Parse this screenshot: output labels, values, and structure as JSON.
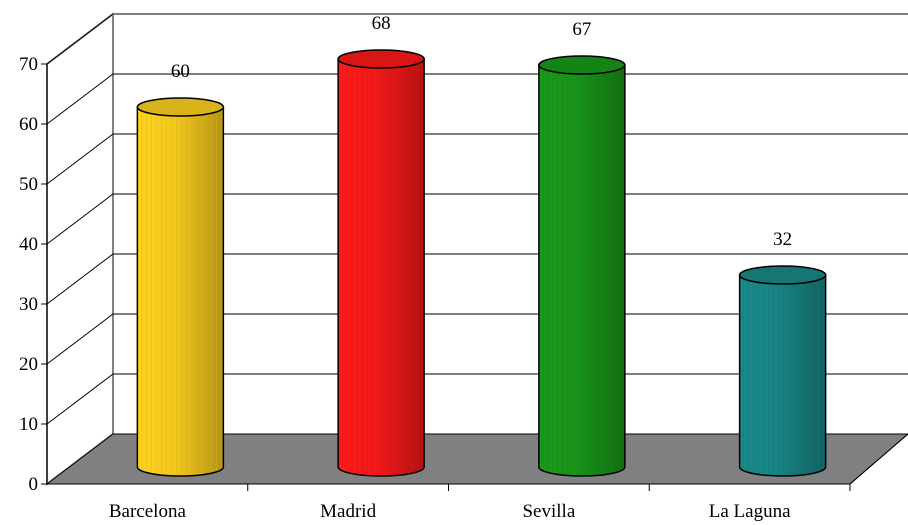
{
  "chart_data": {
    "type": "bar",
    "style": "3d-cylinder",
    "title": "",
    "xlabel": "",
    "ylabel": "",
    "categories": [
      "Barcelona",
      "Madrid",
      "Sevilla",
      "La Laguna"
    ],
    "values": [
      60,
      68,
      67,
      32
    ],
    "data_labels": [
      "60",
      "68",
      "67",
      "32"
    ],
    "colors": [
      "#ffd21e",
      "#ff1a1a",
      "#1a9a1a",
      "#1a8a8a"
    ],
    "ylim": [
      0,
      70
    ],
    "yticks": [
      "0",
      "10",
      "20",
      "30",
      "40",
      "50",
      "60",
      "70"
    ],
    "grid": true,
    "legend": "none",
    "floor_color": "#808080",
    "wall_color": "#ffffff"
  }
}
